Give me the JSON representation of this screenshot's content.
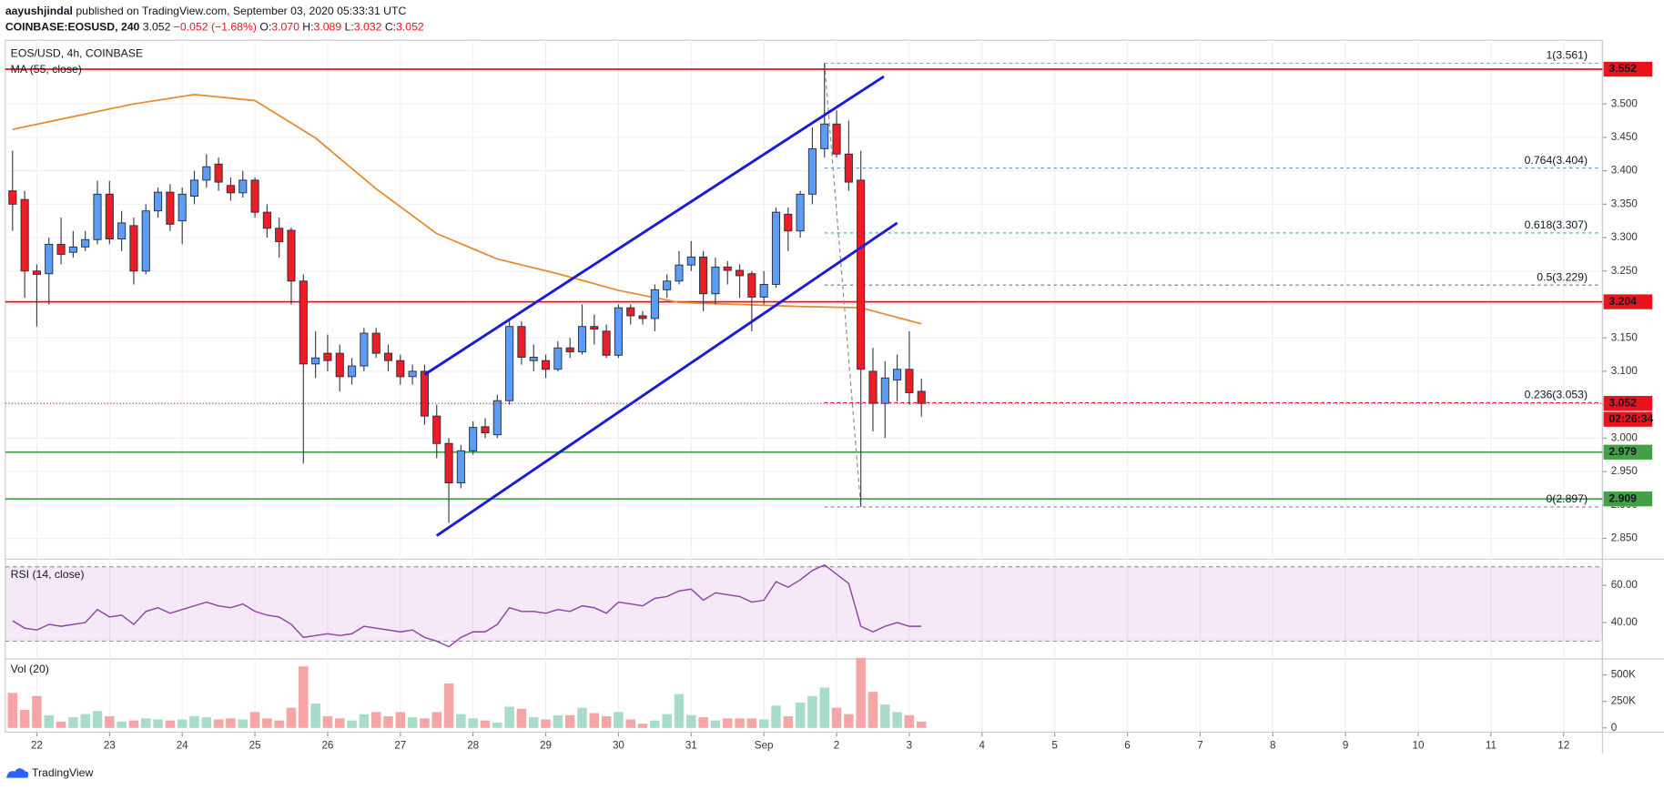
{
  "header": {
    "author": "aayushjindal",
    "published": "published on TradingView.com, September 03, 2020 05:33:31 UTC",
    "symbol": "COINBASE:EOSUSD, 240",
    "last": "3.052",
    "change": "−0.052 (−1.68%)",
    "ohlc": [
      {
        "key": "O:",
        "value": "3.070"
      },
      {
        "key": "H:",
        "value": "3.089"
      },
      {
        "key": "L:",
        "value": "3.032"
      },
      {
        "key": "C:",
        "value": "3.052"
      }
    ]
  },
  "footer": {
    "logo": "TradingView"
  },
  "chart_data": {
    "type": "candlestick",
    "title": "EOS/USD, 4h, COINBASE",
    "xlim": [
      -0.6,
      131.2
    ],
    "xticks": [
      {
        "value": 2,
        "label": "22"
      },
      {
        "value": 8,
        "label": "23"
      },
      {
        "value": 14,
        "label": "24"
      },
      {
        "value": 20,
        "label": "25"
      },
      {
        "value": 26,
        "label": "26"
      },
      {
        "value": 32,
        "label": "27"
      },
      {
        "value": 38,
        "label": "28"
      },
      {
        "value": 44,
        "label": "29"
      },
      {
        "value": 50,
        "label": "30"
      },
      {
        "value": 56,
        "label": "31"
      },
      {
        "value": 62,
        "label": "Sep"
      },
      {
        "value": 68,
        "label": "2"
      },
      {
        "value": 74,
        "label": "3"
      },
      {
        "value": 80,
        "label": "4"
      },
      {
        "value": 86,
        "label": "5"
      },
      {
        "value": 92,
        "label": "6"
      },
      {
        "value": 98,
        "label": "7"
      },
      {
        "value": 104,
        "label": "8"
      },
      {
        "value": 110,
        "label": "9"
      },
      {
        "value": 116,
        "label": "10"
      },
      {
        "value": 122,
        "label": "11"
      },
      {
        "value": 128,
        "label": "12"
      }
    ],
    "ylim": [
      2.822,
      3.592
    ],
    "yticks": [
      {
        "value": 2.85,
        "label": "2.850"
      },
      {
        "value": 2.9,
        "label": "2.900"
      },
      {
        "value": 2.95,
        "label": "2.950"
      },
      {
        "value": 3.0,
        "label": "3.000"
      },
      {
        "value": 3.05,
        "label": "3.050"
      },
      {
        "value": 3.1,
        "label": "3.100"
      },
      {
        "value": 3.15,
        "label": "3.150"
      },
      {
        "value": 3.2,
        "label": "3.200"
      },
      {
        "value": 3.25,
        "label": "3.250"
      },
      {
        "value": 3.3,
        "label": "3.300"
      },
      {
        "value": 3.35,
        "label": "3.350"
      },
      {
        "value": 3.4,
        "label": "3.400"
      },
      {
        "value": 3.45,
        "label": "3.450"
      },
      {
        "value": 3.5,
        "label": "3.500"
      }
    ],
    "grid": true,
    "up_color": "#5b9cf6",
    "down_color": "#ee1c25",
    "open": [
      3.37,
      3.357,
      3.25,
      3.246,
      3.29,
      3.278,
      3.286,
      3.297,
      3.365,
      3.298,
      3.318,
      3.25,
      3.34,
      3.368,
      3.325,
      3.362,
      3.386,
      3.41,
      3.378,
      3.367,
      3.386,
      3.338,
      3.314,
      3.311,
      3.235,
      3.111,
      3.127,
      3.127,
      3.092,
      3.108,
      3.157,
      3.127,
      3.116,
      3.092,
      3.1,
      3.033,
      2.992,
      2.933,
      2.981,
      3.017,
      3.005,
      3.056,
      3.167,
      3.116,
      3.116,
      3.103,
      3.135,
      3.129,
      3.167,
      3.16,
      3.124,
      3.195,
      3.183,
      3.179,
      3.222,
      3.235,
      3.259,
      3.271,
      3.216,
      3.256,
      3.251,
      3.246,
      3.211,
      3.23,
      3.335,
      3.31,
      3.365,
      3.433,
      3.47,
      3.425,
      3.386,
      3.1,
      3.052,
      3.087,
      3.103,
      3.07
    ],
    "high": [
      3.43,
      3.37,
      3.26,
      3.3,
      3.33,
      3.31,
      3.31,
      3.385,
      3.385,
      3.34,
      3.33,
      3.35,
      3.375,
      3.38,
      3.375,
      3.4,
      3.425,
      3.42,
      3.39,
      3.4,
      3.39,
      3.35,
      3.33,
      3.315,
      3.245,
      3.16,
      3.155,
      3.14,
      3.12,
      3.165,
      3.165,
      3.14,
      3.125,
      3.11,
      3.11,
      3.05,
      3.0,
      2.99,
      3.025,
      3.03,
      3.065,
      3.175,
      3.175,
      3.14,
      3.125,
      3.145,
      3.15,
      3.2,
      3.185,
      3.17,
      3.2,
      3.2,
      3.19,
      3.23,
      3.245,
      3.28,
      3.295,
      3.28,
      3.27,
      3.265,
      3.26,
      3.25,
      3.25,
      3.345,
      3.345,
      3.37,
      3.465,
      3.561,
      3.49,
      3.475,
      3.43,
      3.135,
      3.115,
      3.125,
      3.16,
      3.089
    ],
    "low": [
      3.31,
      3.21,
      3.167,
      3.2,
      3.26,
      3.27,
      3.28,
      3.29,
      3.29,
      3.28,
      3.23,
      3.245,
      3.33,
      3.31,
      3.29,
      3.35,
      3.375,
      3.37,
      3.355,
      3.36,
      3.33,
      3.3,
      3.27,
      3.2,
      2.962,
      3.09,
      3.1,
      3.07,
      3.08,
      3.1,
      3.12,
      3.1,
      3.08,
      3.08,
      3.02,
      2.97,
      2.873,
      2.925,
      2.975,
      3.0,
      3.0,
      3.05,
      3.11,
      3.1,
      3.09,
      3.1,
      3.12,
      3.125,
      3.14,
      3.12,
      3.12,
      3.17,
      3.17,
      3.16,
      3.21,
      3.23,
      3.25,
      3.19,
      3.2,
      3.23,
      3.21,
      3.16,
      3.2,
      3.225,
      3.28,
      3.3,
      3.35,
      3.42,
      3.42,
      3.37,
      2.897,
      3.01,
      3.0,
      3.055,
      3.05,
      3.032
    ],
    "close": [
      3.35,
      3.25,
      3.245,
      3.29,
      3.275,
      3.286,
      3.297,
      3.365,
      3.298,
      3.322,
      3.25,
      3.34,
      3.368,
      3.32,
      3.365,
      3.386,
      3.406,
      3.383,
      3.367,
      3.386,
      3.338,
      3.314,
      3.294,
      3.235,
      3.111,
      3.12,
      3.116,
      3.092,
      3.108,
      3.157,
      3.127,
      3.116,
      3.092,
      3.1,
      3.033,
      2.992,
      2.933,
      2.981,
      3.016,
      3.008,
      3.056,
      3.167,
      3.121,
      3.121,
      3.103,
      3.135,
      3.129,
      3.167,
      3.163,
      3.124,
      3.195,
      3.183,
      3.179,
      3.222,
      3.235,
      3.259,
      3.271,
      3.216,
      3.256,
      3.251,
      3.243,
      3.211,
      3.23,
      3.338,
      3.31,
      3.365,
      3.433,
      3.47,
      3.425,
      3.383,
      3.103,
      3.052,
      3.09,
      3.103,
      3.068,
      3.052
    ],
    "ma": {
      "name": "MA (55, close)",
      "color": "#e8892d",
      "x": [
        0,
        5,
        10,
        15,
        20,
        25,
        30,
        35,
        40,
        45,
        50,
        55,
        60,
        65,
        70,
        75
      ],
      "values": [
        3.462,
        3.481,
        3.5,
        3.514,
        3.505,
        3.449,
        3.373,
        3.306,
        3.268,
        3.246,
        3.221,
        3.203,
        3.2,
        3.197,
        3.195,
        3.171
      ]
    },
    "trendlines": [
      {
        "color": "#1a1adb",
        "points": [
          [
            34.0,
            3.095
          ],
          [
            71.9,
            3.541
          ]
        ]
      },
      {
        "color": "#1a1adb",
        "points": [
          [
            35.0,
            2.854
          ],
          [
            73.0,
            3.322
          ]
        ]
      }
    ],
    "hlines": [
      {
        "value": 3.552,
        "label": "3.552",
        "color": "#e8131b"
      },
      {
        "value": 3.204,
        "label": "3.204",
        "color": "#e8131b"
      },
      {
        "value": 2.979,
        "label": "2.979",
        "color": "#43a047"
      },
      {
        "value": 2.909,
        "label": "2.909",
        "color": "#43a047"
      }
    ],
    "fib": {
      "x": [
        67,
        70
      ],
      "levels": [
        {
          "value": 3.561,
          "label": "1(3.561)",
          "color": "#8aa4c0"
        },
        {
          "value": 3.404,
          "label": "0.764(3.404)",
          "color": "#4a9fc7"
        },
        {
          "value": 3.307,
          "label": "0.618(3.307)",
          "color": "#21b89b"
        },
        {
          "value": 3.229,
          "label": "0.5(3.229)",
          "color": "#6f7280"
        },
        {
          "value": 3.053,
          "label": "0.236(3.053)",
          "color": "#e8131b"
        },
        {
          "value": 2.897,
          "label": "0(2.897)",
          "color": "#8a8d96"
        }
      ]
    },
    "current": {
      "value": 3.052,
      "label": "3.052",
      "countdown": "02:26:34",
      "color": "#e8131b"
    },
    "rsi": {
      "name": "RSI (14, close)",
      "color": "#8e3fa6",
      "band": [
        30,
        70
      ],
      "ylim": [
        21,
        73.5
      ],
      "yticks": [
        {
          "value": 40,
          "label": "40.00"
        },
        {
          "value": 60,
          "label": "60.00"
        }
      ],
      "values": [
        41,
        37,
        36,
        39,
        38,
        39,
        40,
        47,
        43,
        44,
        39,
        46,
        48,
        45,
        47,
        49,
        51,
        49,
        48,
        50,
        46,
        44,
        43,
        39,
        32,
        33,
        34,
        33,
        34,
        38,
        37,
        36,
        35,
        36,
        32,
        30,
        27,
        32,
        35,
        35,
        39,
        48,
        46,
        46,
        45,
        47,
        46,
        49,
        48,
        45,
        51,
        50,
        49,
        53,
        54,
        57,
        58,
        52,
        56,
        55,
        54,
        51,
        52,
        62,
        59,
        63,
        68,
        71,
        66,
        61,
        38,
        35,
        38,
        40,
        38,
        38
      ]
    },
    "volume": {
      "name": "Vol (20)",
      "up_color": "#a6dcc8",
      "down_color": "#f6a5a7",
      "ylim": [
        -40000,
        640000
      ],
      "yticks": [
        {
          "value": 0,
          "label": "0"
        },
        {
          "value": 250000,
          "label": "250K"
        },
        {
          "value": 500000,
          "label": "500K"
        }
      ],
      "values": [
        330000,
        170000,
        300000,
        120000,
        60000,
        100000,
        130000,
        160000,
        110000,
        60000,
        70000,
        90000,
        80000,
        70000,
        80000,
        110000,
        100000,
        80000,
        90000,
        80000,
        150000,
        90000,
        70000,
        190000,
        580000,
        230000,
        110000,
        90000,
        70000,
        130000,
        150000,
        110000,
        150000,
        100000,
        90000,
        150000,
        420000,
        130000,
        90000,
        70000,
        50000,
        200000,
        180000,
        100000,
        80000,
        120000,
        120000,
        190000,
        140000,
        110000,
        150000,
        80000,
        40000,
        70000,
        130000,
        320000,
        120000,
        100000,
        70000,
        90000,
        90000,
        90000,
        80000,
        210000,
        110000,
        240000,
        300000,
        380000,
        190000,
        130000,
        660000,
        340000,
        220000,
        150000,
        120000,
        60000
      ]
    }
  }
}
